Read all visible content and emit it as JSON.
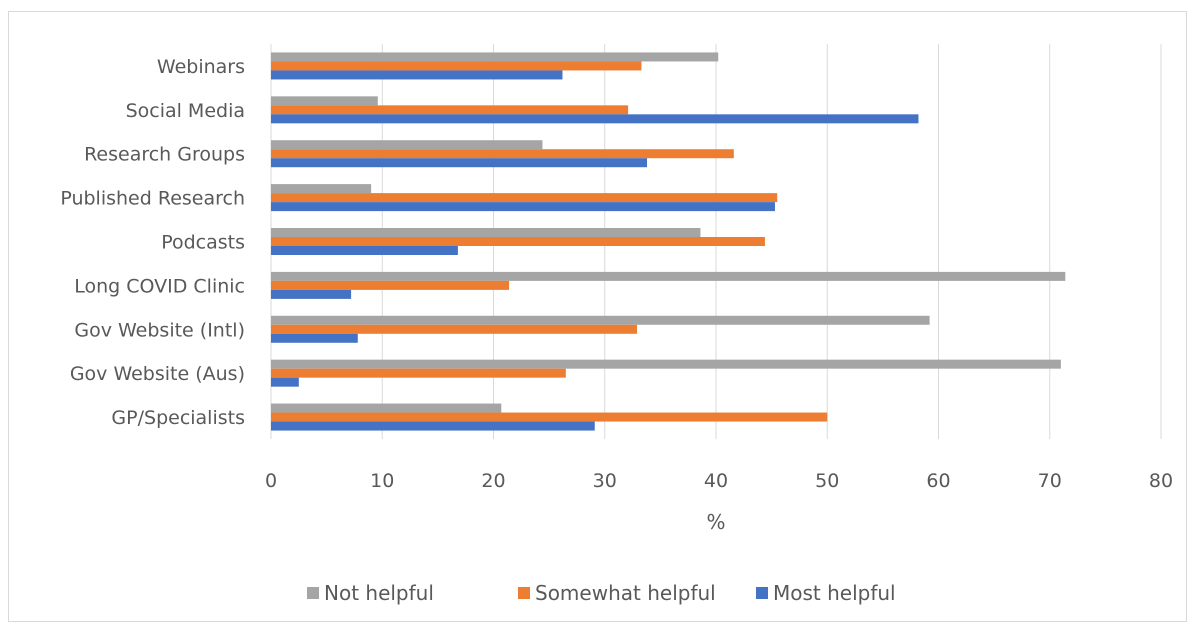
{
  "chart_data": {
    "type": "bar",
    "orientation": "horizontal",
    "categories": [
      "Webinars",
      "Social Media",
      "Research Groups",
      "Published Research",
      "Podcasts",
      "Long COVID Clinic",
      "Gov Website (Intl)",
      "Gov Website (Aus)",
      "GP/Specialists"
    ],
    "series": [
      {
        "name": "Not helpful",
        "color": "#a5a5a5",
        "values": [
          40.2,
          9.6,
          24.4,
          9.0,
          38.6,
          71.4,
          59.2,
          71.0,
          20.7
        ]
      },
      {
        "name": "Somewhat helpful",
        "color": "#ed7d31",
        "values": [
          33.3,
          32.1,
          41.6,
          45.5,
          44.4,
          21.4,
          32.9,
          26.5,
          50.0
        ]
      },
      {
        "name": "Most helpful",
        "color": "#4472c4",
        "values": [
          26.2,
          58.2,
          33.8,
          45.3,
          16.8,
          7.2,
          7.8,
          2.5,
          29.1
        ]
      }
    ],
    "x_ticks": [
      "0",
      "10",
      "20",
      "30",
      "40",
      "50",
      "60",
      "70",
      "80"
    ],
    "xlabel": "%",
    "xlim": [
      0,
      80
    ],
    "grid": "vertical",
    "legend": "bottom"
  }
}
